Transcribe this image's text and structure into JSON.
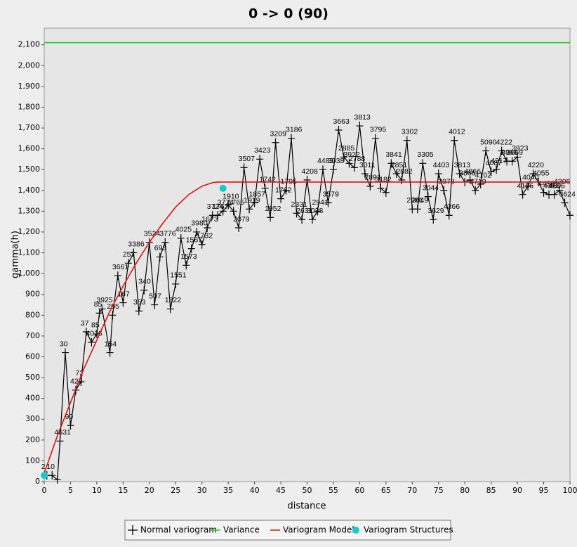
{
  "chart_data": {
    "type": "line",
    "title": "0 -> 0 (90)",
    "x_label": "distance",
    "y_label": "gamma(h)",
    "xlim": [
      0,
      100
    ],
    "ylim": [
      0,
      2180
    ],
    "grid": false,
    "legend": "bottom",
    "xticks": [
      0,
      5,
      10,
      15,
      20,
      25,
      30,
      35,
      40,
      45,
      50,
      55,
      60,
      65,
      70,
      75,
      80,
      85,
      90,
      95,
      100
    ],
    "yticks": [
      0,
      100,
      200,
      300,
      400,
      500,
      600,
      700,
      800,
      900,
      {
        "value": 1000,
        "label": "1,000"
      },
      {
        "value": 1100,
        "label": "1,100"
      },
      {
        "value": 1200,
        "label": "1,200"
      },
      {
        "value": 1300,
        "label": "1,300"
      },
      {
        "value": 1400,
        "label": "1,400"
      },
      {
        "value": 1500,
        "label": "1,500"
      },
      {
        "value": 1600,
        "label": "1,600"
      },
      {
        "value": 1700,
        "label": "1,700"
      },
      {
        "value": 1800,
        "label": "1,800"
      },
      {
        "value": 1900,
        "label": "1,900"
      },
      {
        "value": 2000,
        "label": "2,000"
      },
      {
        "value": 2100,
        "label": "2,100"
      }
    ],
    "series": [
      {
        "name": "Normal variogram",
        "color": "#000000",
        "marker": "cross",
        "x": [
          0.5,
          1.5,
          2.5,
          3,
          4,
          5,
          6,
          7,
          8,
          9,
          10,
          10.5,
          11,
          12.5,
          13,
          14,
          15,
          16,
          17,
          18,
          19,
          20,
          21,
          22,
          23,
          24,
          25,
          26,
          27,
          28,
          29,
          30,
          31,
          32,
          33,
          34,
          35,
          36,
          37,
          38,
          39,
          40,
          41,
          42,
          43,
          44,
          45,
          46,
          47,
          48,
          49,
          50,
          51,
          52,
          53,
          54,
          55,
          56,
          57,
          58,
          59,
          60,
          61,
          62,
          63,
          64,
          65,
          66,
          67,
          68,
          69,
          70,
          71,
          72,
          73,
          74,
          75,
          76,
          77,
          78,
          79,
          80,
          81,
          82,
          83,
          84,
          85,
          86,
          87,
          88,
          89,
          90,
          91,
          92,
          93,
          94,
          95,
          96,
          97,
          98,
          99,
          100
        ],
        "values": [
          30,
          30,
          10,
          195,
          620,
          270,
          440,
          480,
          720,
          670,
          710,
          810,
          830,
          620,
          800,
          990,
          860,
          1050,
          1100,
          820,
          920,
          1150,
          850,
          1080,
          1150,
          830,
          950,
          1170,
          1040,
          1120,
          1200,
          1140,
          1220,
          1280,
          1280,
          1300,
          1330,
          1300,
          1220,
          1510,
          1310,
          1340,
          1550,
          1410,
          1270,
          1630,
          1360,
          1400,
          1650,
          1290,
          1260,
          1450,
          1260,
          1300,
          1500,
          1340,
          1500,
          1690,
          1560,
          1530,
          1510,
          1710,
          1480,
          1420,
          1650,
          1410,
          1390,
          1530,
          1480,
          1450,
          1640,
          1310,
          1310,
          1530,
          1370,
          1260,
          1480,
          1400,
          1280,
          1640,
          1480,
          1440,
          1450,
          1400,
          1430,
          1590,
          1490,
          1500,
          1590,
          1540,
          1540,
          1560,
          1380,
          1420,
          1480,
          1440,
          1390,
          1380,
          1380,
          1400,
          1340,
          1280
        ],
        "point_labels": [
          "2",
          "10",
          null,
          "4631",
          "30",
          "90",
          "429",
          "72",
          "37",
          "4026",
          "85",
          "85",
          "3925",
          "154",
          "205",
          "3661",
          "167",
          "257",
          "3386",
          "353",
          "340",
          "3524",
          "507",
          "693",
          "3776",
          "1322",
          "1551",
          "4025",
          "1573",
          "1567",
          "3980",
          "1732",
          "1673",
          "3724",
          "1767",
          "3774",
          "1910",
          "1765",
          "2079",
          "3507",
          "1919",
          "1857",
          "3423",
          "1742",
          "1952",
          "3209",
          "1762",
          "1795",
          "3186",
          "2331",
          "2631",
          "4208",
          "3038",
          "2941",
          "4483",
          "3579",
          "3038",
          "3663",
          "2885",
          "3922",
          "2788",
          "3813",
          "3011",
          "2891",
          "3795",
          "3182",
          null,
          "3841",
          "2851",
          "2882",
          "3302",
          "2981",
          "3049",
          "3305",
          "3044",
          "3629",
          "4403",
          "3978",
          "4366",
          "4012",
          "3813",
          "3866",
          "4866",
          "4719",
          "4102",
          "5090",
          "4087",
          "4217",
          "4222",
          "3866",
          "3669",
          "3923",
          "4156",
          "4040",
          "4220",
          "4055",
          "4458",
          "4388",
          "4606",
          "4306",
          "3624",
          null
        ]
      },
      {
        "name": "Variance",
        "color": "#22cc22",
        "marker": "none",
        "x": [
          0,
          100
        ],
        "values": [
          2110,
          2110
        ]
      },
      {
        "name": "Variogram Model",
        "color": "#dd1111",
        "marker": "none",
        "x": [
          0,
          2.5,
          5,
          7.5,
          10,
          12.5,
          15,
          17.5,
          20,
          22.5,
          25,
          27.5,
          30,
          32,
          33,
          100
        ],
        "values": [
          40,
          220,
          380,
          540,
          680,
          820,
          940,
          1050,
          1150,
          1240,
          1320,
          1380,
          1420,
          1437,
          1440,
          1440
        ]
      },
      {
        "name": "Variogram Structures",
        "color": "#11cccc",
        "marker": "circle",
        "x": [
          0,
          34
        ],
        "values": [
          30,
          1410
        ]
      }
    ]
  }
}
